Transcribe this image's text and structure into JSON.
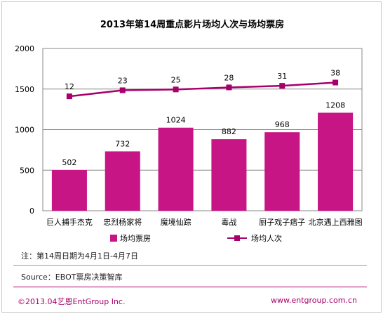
{
  "colors": {
    "bar": "#c71585",
    "line": "#a8006b",
    "footer": "#a8006b"
  },
  "chart_data": {
    "type": "bar",
    "title": "2013年第14周重点影片场均人次与场均票房",
    "categories": [
      "巨人捕手杰克",
      "忠烈杨家将",
      "魔境仙踪",
      "毒战",
      "厨子戏子痞子",
      "北京遇上西雅图"
    ],
    "series": [
      {
        "name": "场均票房",
        "type": "bar",
        "values": [
          502,
          732,
          1024,
          882,
          968,
          1208
        ]
      },
      {
        "name": "场均人次",
        "type": "line",
        "values": [
          12,
          23,
          25,
          28,
          31,
          38
        ],
        "plotted_y": [
          1410,
          1485,
          1495,
          1520,
          1540,
          1580
        ]
      }
    ],
    "ylim": [
      0,
      2000
    ],
    "yticks": [
      0,
      500,
      1000,
      1500,
      2000
    ],
    "grid": true,
    "legend": "bottom"
  },
  "note": "注：第14周日期为4月1日-4月7日",
  "source": "Source：EBOT票房决策智库",
  "footer": {
    "left": "©2013.04艺恩EntGroup Inc.",
    "right": "www.entgroup.com.cn"
  }
}
